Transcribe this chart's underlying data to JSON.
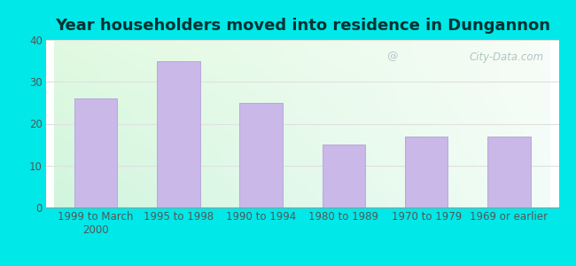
{
  "title": "Year householders moved into residence in Dungannon",
  "categories": [
    "1999 to March\n2000",
    "1995 to 1998",
    "1990 to 1994",
    "1980 to 1989",
    "1970 to 1979",
    "1969 or earlier"
  ],
  "values": [
    26,
    35,
    25,
    15,
    17,
    17
  ],
  "bar_color": "#c9b8e8",
  "bar_edgecolor": "#b8a8da",
  "ylim": [
    0,
    40
  ],
  "yticks": [
    0,
    10,
    20,
    30,
    40
  ],
  "outer_background": "#00e8e8",
  "title_fontsize": 13,
  "tick_fontsize": 8.5,
  "watermark": "City-Data.com",
  "grid_color": "#e0e0e0",
  "grad_topleft": [
    0.88,
    0.98,
    0.88
  ],
  "grad_topright": [
    0.97,
    0.99,
    0.97
  ],
  "grad_botleft": [
    0.82,
    0.96,
    0.87
  ],
  "grad_botright": [
    0.95,
    0.99,
    0.97
  ]
}
